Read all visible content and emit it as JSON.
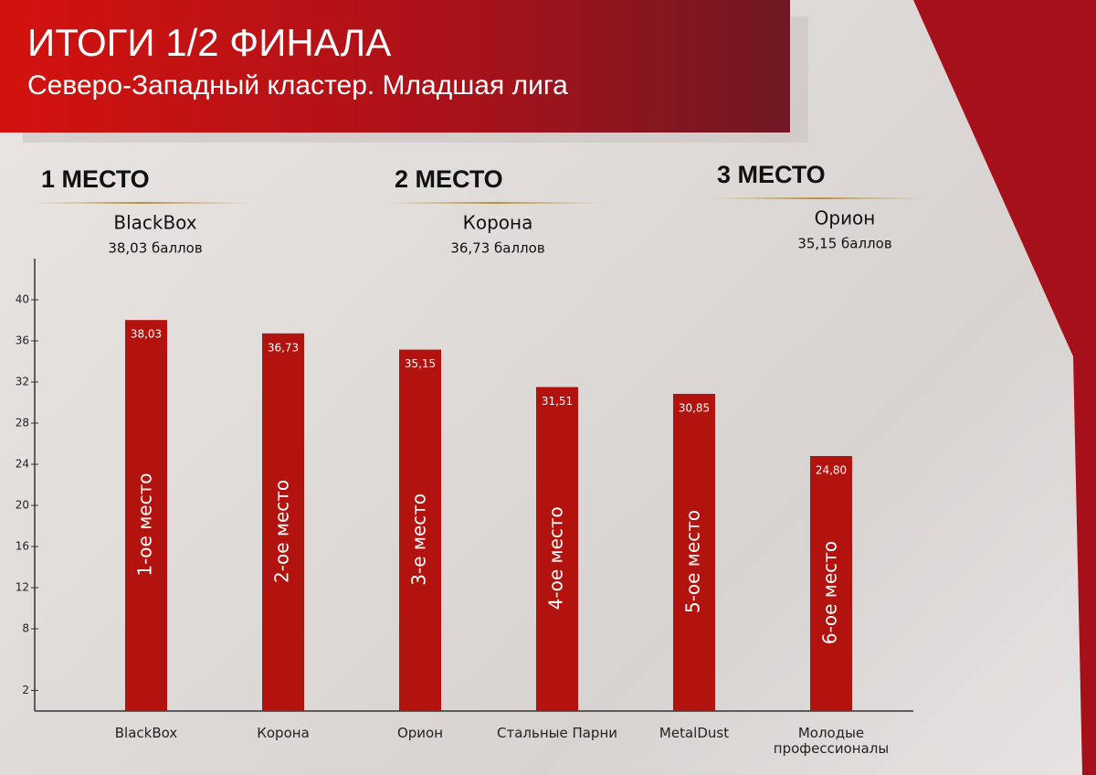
{
  "chart_data": {
    "type": "bar",
    "title": "ИТОГИ 1/2 ФИНАЛА",
    "subtitle": "Северо-Западный кластер. Младшая лига",
    "podium": [
      {
        "place": "1 МЕСТО",
        "team": "BlackBox",
        "score": "38,03 баллов"
      },
      {
        "place": "2 МЕСТО",
        "team": "Корона",
        "score": "36,73 баллов"
      },
      {
        "place": "3 МЕСТО",
        "team": "Орион",
        "score": "35,15 баллов"
      }
    ],
    "categories": [
      "BlackBox",
      "Корона",
      "Орион",
      "Стальные Парни",
      "MetalDust",
      "Молодые профессионалы"
    ],
    "values": [
      38.03,
      36.73,
      35.15,
      31.51,
      30.85,
      24.8
    ],
    "value_labels": [
      "38,03",
      "36,73",
      "35,15",
      "31,51",
      "30,85",
      "24,80"
    ],
    "bar_labels": [
      "1-ое место",
      "2-ое место",
      "3-е место",
      "4-ое место",
      "5-ое место",
      "6-ое место"
    ],
    "color": "#b3130e",
    "ylim": [
      0,
      44
    ],
    "yticks": [
      2,
      8,
      12,
      16,
      20,
      24,
      28,
      32,
      36,
      40
    ]
  }
}
